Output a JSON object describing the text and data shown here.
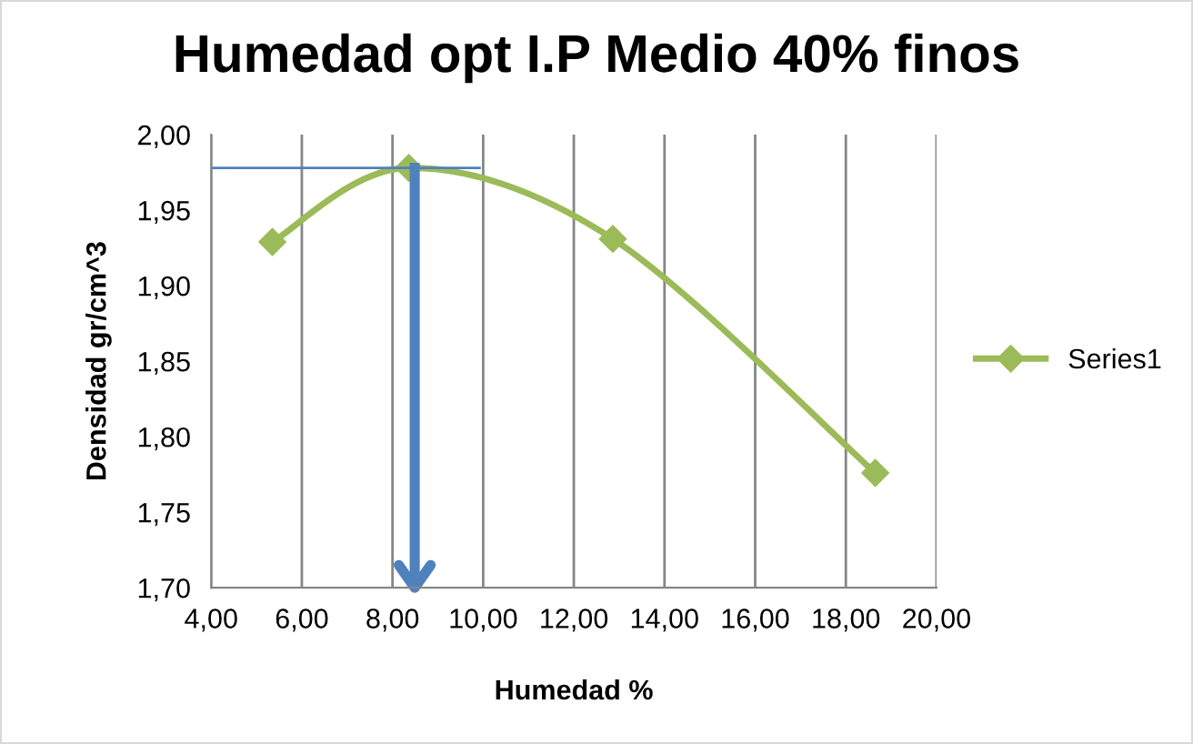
{
  "chart_data": {
    "type": "line",
    "title": "Humedad opt I.P Medio 40% finos",
    "xlabel": "Humedad %",
    "ylabel": "Densidad gr/cm^3",
    "x": [
      5.35,
      8.36,
      12.86,
      18.65
    ],
    "series": [
      {
        "name": "Series1",
        "color": "#9bbb59",
        "values": [
          1.929,
          1.978,
          1.931,
          1.776
        ]
      }
    ],
    "marker": "diamond",
    "line_style": "solid",
    "legend": "right",
    "grid": "x",
    "xlim": [
      4,
      20
    ],
    "xticks": [
      {
        "value": 4,
        "label": "4,00"
      },
      {
        "value": 6,
        "label": "6,00"
      },
      {
        "value": 8,
        "label": "8,00"
      },
      {
        "value": 10,
        "label": "10,00"
      },
      {
        "value": 12,
        "label": "12,00"
      },
      {
        "value": 14,
        "label": "14,00"
      },
      {
        "value": 16,
        "label": "16,00"
      },
      {
        "value": 18,
        "label": "18,00"
      },
      {
        "value": 20,
        "label": "20,00"
      }
    ],
    "ylim": [
      1.7,
      2.0
    ],
    "yticks": [
      {
        "value": 1.7,
        "label": "1,70"
      },
      {
        "value": 1.75,
        "label": "1,75"
      },
      {
        "value": 1.8,
        "label": "1,80"
      },
      {
        "value": 1.85,
        "label": "1,85"
      },
      {
        "value": 1.9,
        "label": "1,90"
      },
      {
        "value": 1.95,
        "label": "1,95"
      },
      {
        "value": 2.0,
        "label": "2,00"
      }
    ],
    "ref_lines": [
      {
        "axis": "y",
        "value": 1.978,
        "color": "#4f81bd",
        "line_style": "solid"
      },
      {
        "axis": "x",
        "value": 8.49,
        "color": "#4f81bd",
        "line_style": "solid"
      }
    ]
  }
}
